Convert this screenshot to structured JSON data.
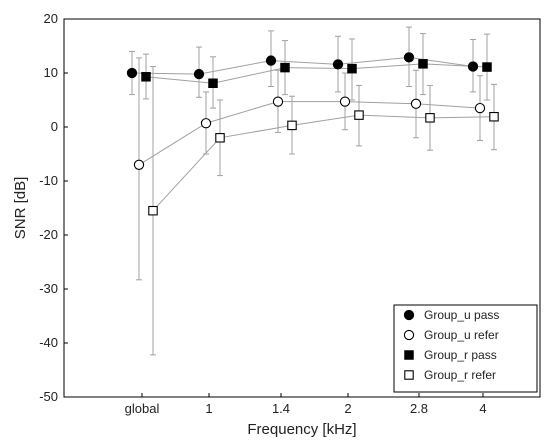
{
  "chart_data": {
    "type": "scatter",
    "title": "",
    "xlabel": "Frequency [kHz]",
    "ylabel": "SNR [dB]",
    "categories": [
      "global",
      "1",
      "1.4",
      "2",
      "2.8",
      "4"
    ],
    "ylim": [
      -50,
      20
    ],
    "yticks": [
      20,
      10,
      0,
      -10,
      -20,
      -30,
      -40,
      -50
    ],
    "grid": false,
    "legend_position": "bottom-right",
    "series": [
      {
        "name": "Group_u pass",
        "marker": "filled-circle",
        "values": [
          10,
          9.8,
          12.3,
          11.6,
          12.9,
          11.2
        ],
        "error_low": [
          6,
          5.5,
          7.5,
          6.5,
          7.5,
          6.5
        ],
        "error_high": [
          14,
          14.8,
          17.8,
          16.8,
          18.5,
          16.2
        ]
      },
      {
        "name": "Group_u refer",
        "marker": "open-circle",
        "values": [
          -7,
          0.7,
          4.7,
          4.7,
          4.3,
          3.5
        ],
        "error_low": [
          -28.3,
          -5,
          -1,
          -0.5,
          -2,
          -2.5
        ],
        "error_high": [
          12.8,
          6.5,
          10.5,
          10,
          10.5,
          9.5
        ]
      },
      {
        "name": "Group_r pass",
        "marker": "filled-square",
        "values": [
          9.3,
          8.1,
          11,
          10.8,
          11.7,
          11.1
        ],
        "error_low": [
          5.2,
          3.5,
          6,
          5,
          6,
          5
        ],
        "error_high": [
          13.5,
          13,
          16,
          16.3,
          17.3,
          17.2
        ]
      },
      {
        "name": "Group_r refer",
        "marker": "open-square",
        "values": [
          -15.5,
          -2,
          0.3,
          2.2,
          1.7,
          1.9
        ],
        "error_low": [
          -42.2,
          -9,
          -5,
          -3.5,
          -4.3,
          -4.2
        ],
        "error_high": [
          11.2,
          5,
          5.7,
          7.7,
          7.7,
          7.9
        ]
      }
    ]
  }
}
